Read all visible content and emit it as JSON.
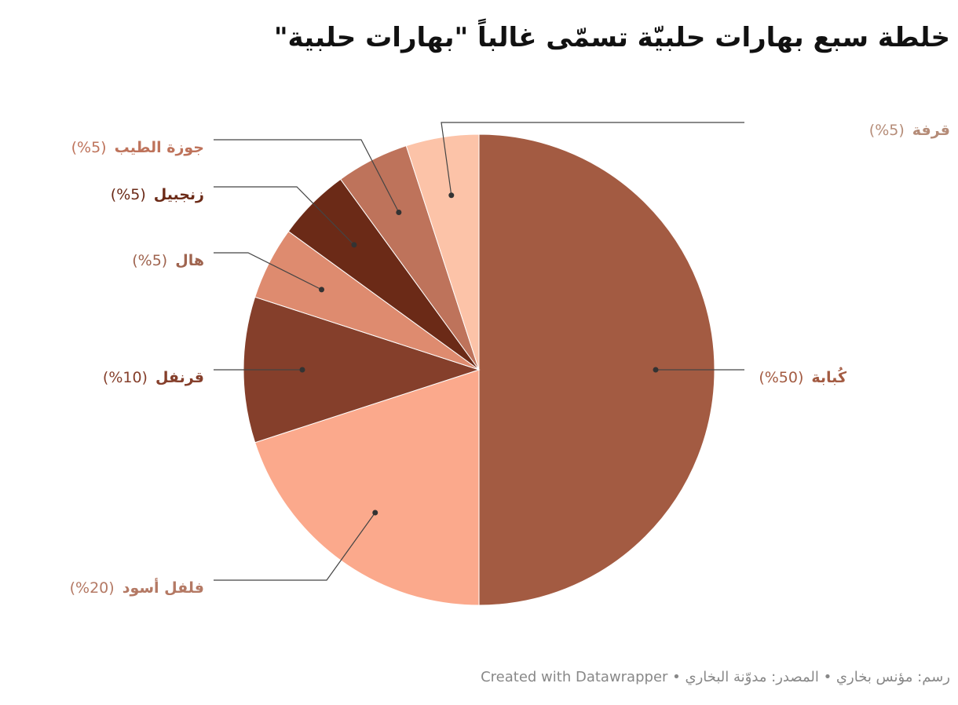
{
  "chart_data": {
    "type": "pie",
    "title": "خلطة سبع بهارات حلبيّة تسمّى غالباً \"بهارات حلبية\"",
    "categories": [
      "كُبابة",
      "فلفل أسود",
      "قرنفل",
      "هال",
      "زنجبيل",
      "جوزة الطيب",
      "قرفة"
    ],
    "values": [
      50,
      20,
      10,
      5,
      5,
      5,
      5
    ],
    "value_labels": [
      "(%50)",
      "(%20)",
      "(%10)",
      "(%5)",
      "(%5)",
      "(%5)",
      "(%5)"
    ],
    "colors": [
      "#a35b42",
      "#fba98c",
      "#853f2b",
      "#de8b6f",
      "#6b2a17",
      "#be735b",
      "#fcc3a8"
    ],
    "footer": "رسم: مؤنس بخاري • المصدر: مدوّنة البخاري • Created with Datawrapper"
  }
}
